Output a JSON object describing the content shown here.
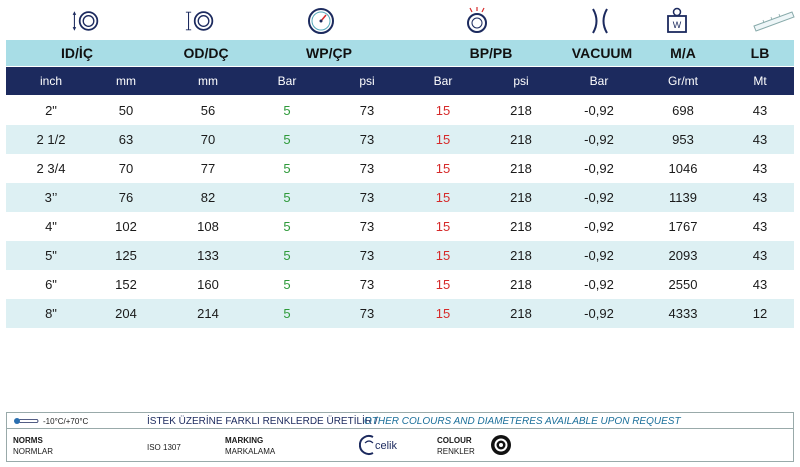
{
  "headers": {
    "id": "ID/İÇ",
    "od": "OD/DÇ",
    "wp": "WP/ÇP",
    "bp": "BP/PB",
    "vacuum": "VACUUM",
    "ma": "M/A",
    "lb": "LB"
  },
  "units": [
    "inch",
    "mm",
    "mm",
    "Bar",
    "psi",
    "Bar",
    "psi",
    "Bar",
    "Gr/mt",
    "Mt"
  ],
  "rows": [
    [
      "2\"",
      "50",
      "56",
      "5",
      "73",
      "15",
      "218",
      "-0,92",
      "698",
      "43"
    ],
    [
      "2 1/2",
      "63",
      "70",
      "5",
      "73",
      "15",
      "218",
      "-0,92",
      "953",
      "43"
    ],
    [
      "2 3/4",
      "70",
      "77",
      "5",
      "73",
      "15",
      "218",
      "-0,92",
      "1046",
      "43"
    ],
    [
      "3’’",
      "76",
      "82",
      "5",
      "73",
      "15",
      "218",
      "-0,92",
      "1139",
      "43"
    ],
    [
      "4\"",
      "102",
      "108",
      "5",
      "73",
      "15",
      "218",
      "-0,92",
      "1767",
      "43"
    ],
    [
      "5\"",
      "125",
      "133",
      "5",
      "73",
      "15",
      "218",
      "-0,92",
      "2093",
      "43"
    ],
    [
      "6\"",
      "152",
      "160",
      "5",
      "73",
      "15",
      "218",
      "-0,92",
      "2550",
      "43"
    ],
    [
      "8\"",
      "204",
      "214",
      "5",
      "73",
      "15",
      "218",
      "-0,92",
      "4333",
      "12"
    ]
  ],
  "footer": {
    "temperature": "-10°C/+70°C",
    "notice_tr": "İSTEK ÜZERİNE FARKLI RENKLERDE ÜRETİLİR /",
    "notice_en": "OTHER COLOURS AND DIAMETERES AVAILABLE UPON REQUEST",
    "norms_label": "NORMS",
    "norms_label_tr": "NORMLAR",
    "norms_value": "ISO 1307",
    "marking_label": "MARKING",
    "marking_label_tr": "MARKALAMA",
    "marking_logo_text": "celik",
    "colour_label": "COLOUR",
    "colour_label_tr": "RENKLER"
  },
  "colors": {
    "header_light": "#a8dde6",
    "header_dark": "#1c2a5e",
    "row_alt": "#ddf0f3",
    "wp_value": "#2e9a3a",
    "bp_value": "#d62a2a"
  },
  "icons": [
    "inner-diameter-icon",
    "outer-diameter-icon",
    "pressure-gauge-icon",
    "burst-icon",
    "vacuum-icon",
    "weight-icon",
    "length-ruler-icon"
  ]
}
